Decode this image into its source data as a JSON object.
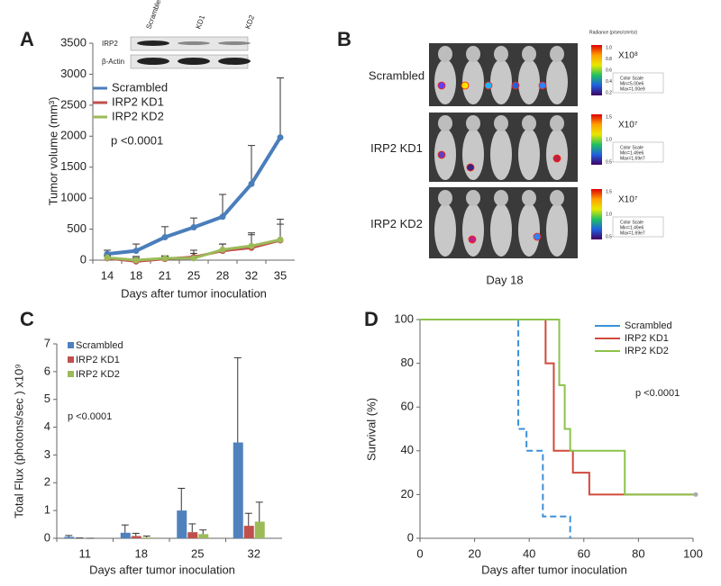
{
  "chart_data": [
    {
      "type": "line",
      "label": "A",
      "xlabel": "Days after tumor inoculation",
      "ylabel": "Tumor volume (mm³)",
      "annotation": "p <0.0001",
      "categories": [
        "14",
        "18",
        "21",
        "25",
        "28",
        "32",
        "35"
      ],
      "ylim": [
        0,
        3500
      ],
      "yticks": [
        0,
        500,
        1000,
        1500,
        2000,
        2500,
        3000,
        3500
      ],
      "series": [
        {
          "name": "Scrambled",
          "color": "#4a7ebb",
          "values": [
            100,
            150,
            370,
            530,
            700,
            1230,
            1980
          ],
          "errors": [
            60,
            110,
            170,
            150,
            360,
            620,
            960
          ]
        },
        {
          "name": "IRP2 KD1",
          "color": "#c0504d",
          "values": [
            30,
            -20,
            20,
            50,
            150,
            200,
            320
          ],
          "errors": [
            40,
            60,
            40,
            110,
            110,
            240,
            340
          ]
        },
        {
          "name": "IRP2 KD2",
          "color": "#9bbb59",
          "values": [
            40,
            0,
            30,
            30,
            170,
            230,
            330
          ],
          "errors": [
            30,
            60,
            40,
            80,
            90,
            180,
            250
          ]
        }
      ],
      "inset": {
        "columns": [
          "Scrambled",
          "KD1",
          "KD2"
        ],
        "rows": [
          "IRP2",
          "β-Actin"
        ]
      }
    },
    {
      "type": "bar",
      "label": "C",
      "xlabel": "Days after tumor inoculation",
      "ylabel": "Total Flux (photons/sec ) x10⁹",
      "annotation": "p <0.0001",
      "categories": [
        "11",
        "18",
        "25",
        "32"
      ],
      "ylim": [
        0,
        7
      ],
      "yticks": [
        0,
        1,
        2,
        3,
        4,
        5,
        6,
        7
      ],
      "series": [
        {
          "name": "Scrambled",
          "color": "#4f81bd",
          "values": [
            0.05,
            0.2,
            1.0,
            3.45
          ],
          "errors": [
            0.05,
            0.28,
            0.8,
            3.05
          ]
        },
        {
          "name": "IRP2 KD1",
          "color": "#c0504d",
          "values": [
            0.01,
            0.08,
            0.22,
            0.45
          ],
          "errors": [
            0,
            0.1,
            0.3,
            0.45
          ]
        },
        {
          "name": "IRP2 KD2",
          "color": "#9bbb59",
          "values": [
            0,
            0.03,
            0.15,
            0.6
          ],
          "errors": [
            0,
            0.05,
            0.15,
            0.7
          ]
        }
      ]
    },
    {
      "type": "step",
      "label": "D",
      "xlabel": "Days after tumor inoculation",
      "ylabel": "Survival (%)",
      "annotation": "p <0.0001",
      "xlim": [
        0,
        100
      ],
      "xticks": [
        0,
        20,
        40,
        60,
        80,
        100
      ],
      "ylim": [
        0,
        100
      ],
      "yticks": [
        0,
        20,
        40,
        60,
        80,
        100
      ],
      "series": [
        {
          "name": "Scrambled",
          "color": "#3d8fd8",
          "dashed": true,
          "x": [
            0,
            36,
            36,
            39,
            39,
            45,
            45,
            55,
            55
          ],
          "values": [
            100,
            100,
            50,
            50,
            40,
            40,
            10,
            10,
            0
          ]
        },
        {
          "name": "IRP2 KD1",
          "color": "#d04a3c",
          "x": [
            0,
            46,
            46,
            49,
            49,
            56,
            56,
            62,
            62,
            101
          ],
          "values": [
            100,
            100,
            80,
            80,
            40,
            40,
            30,
            30,
            20,
            20
          ]
        },
        {
          "name": "IRP2 KD2",
          "color": "#8cc34a",
          "x": [
            0,
            51,
            51,
            53,
            53,
            55,
            55,
            75,
            75,
            101
          ],
          "values": [
            100,
            100,
            70,
            70,
            50,
            50,
            40,
            40,
            20,
            20
          ]
        }
      ]
    }
  ],
  "panel_b": {
    "label": "B",
    "radiance": "Radiance (p/sec/cm²/sr)",
    "caption": "Day 18",
    "rows": [
      {
        "name": "Scrambled",
        "exponent": "X10⁸",
        "scale_ticks": [
          "1.0",
          "0.8",
          "0.6",
          "0.4",
          "0.2"
        ],
        "box": [
          "Color Scale",
          "Min=5.00e6",
          "Max=1.00e9"
        ]
      },
      {
        "name": "IRP2 KD1",
        "exponent": "X10⁷",
        "scale_ticks": [
          "1.5",
          "1.0",
          "0.5"
        ],
        "box": [
          "Color Scale",
          "Min=1.49e6",
          "Max=1.69e7"
        ]
      },
      {
        "name": "IRP2 KD2",
        "exponent": "X10⁷",
        "scale_ticks": [
          "1.5",
          "1.0",
          "0.5"
        ],
        "box": [
          "Color Scale",
          "Min=1.49e6",
          "Max=1.69e7"
        ]
      }
    ]
  }
}
